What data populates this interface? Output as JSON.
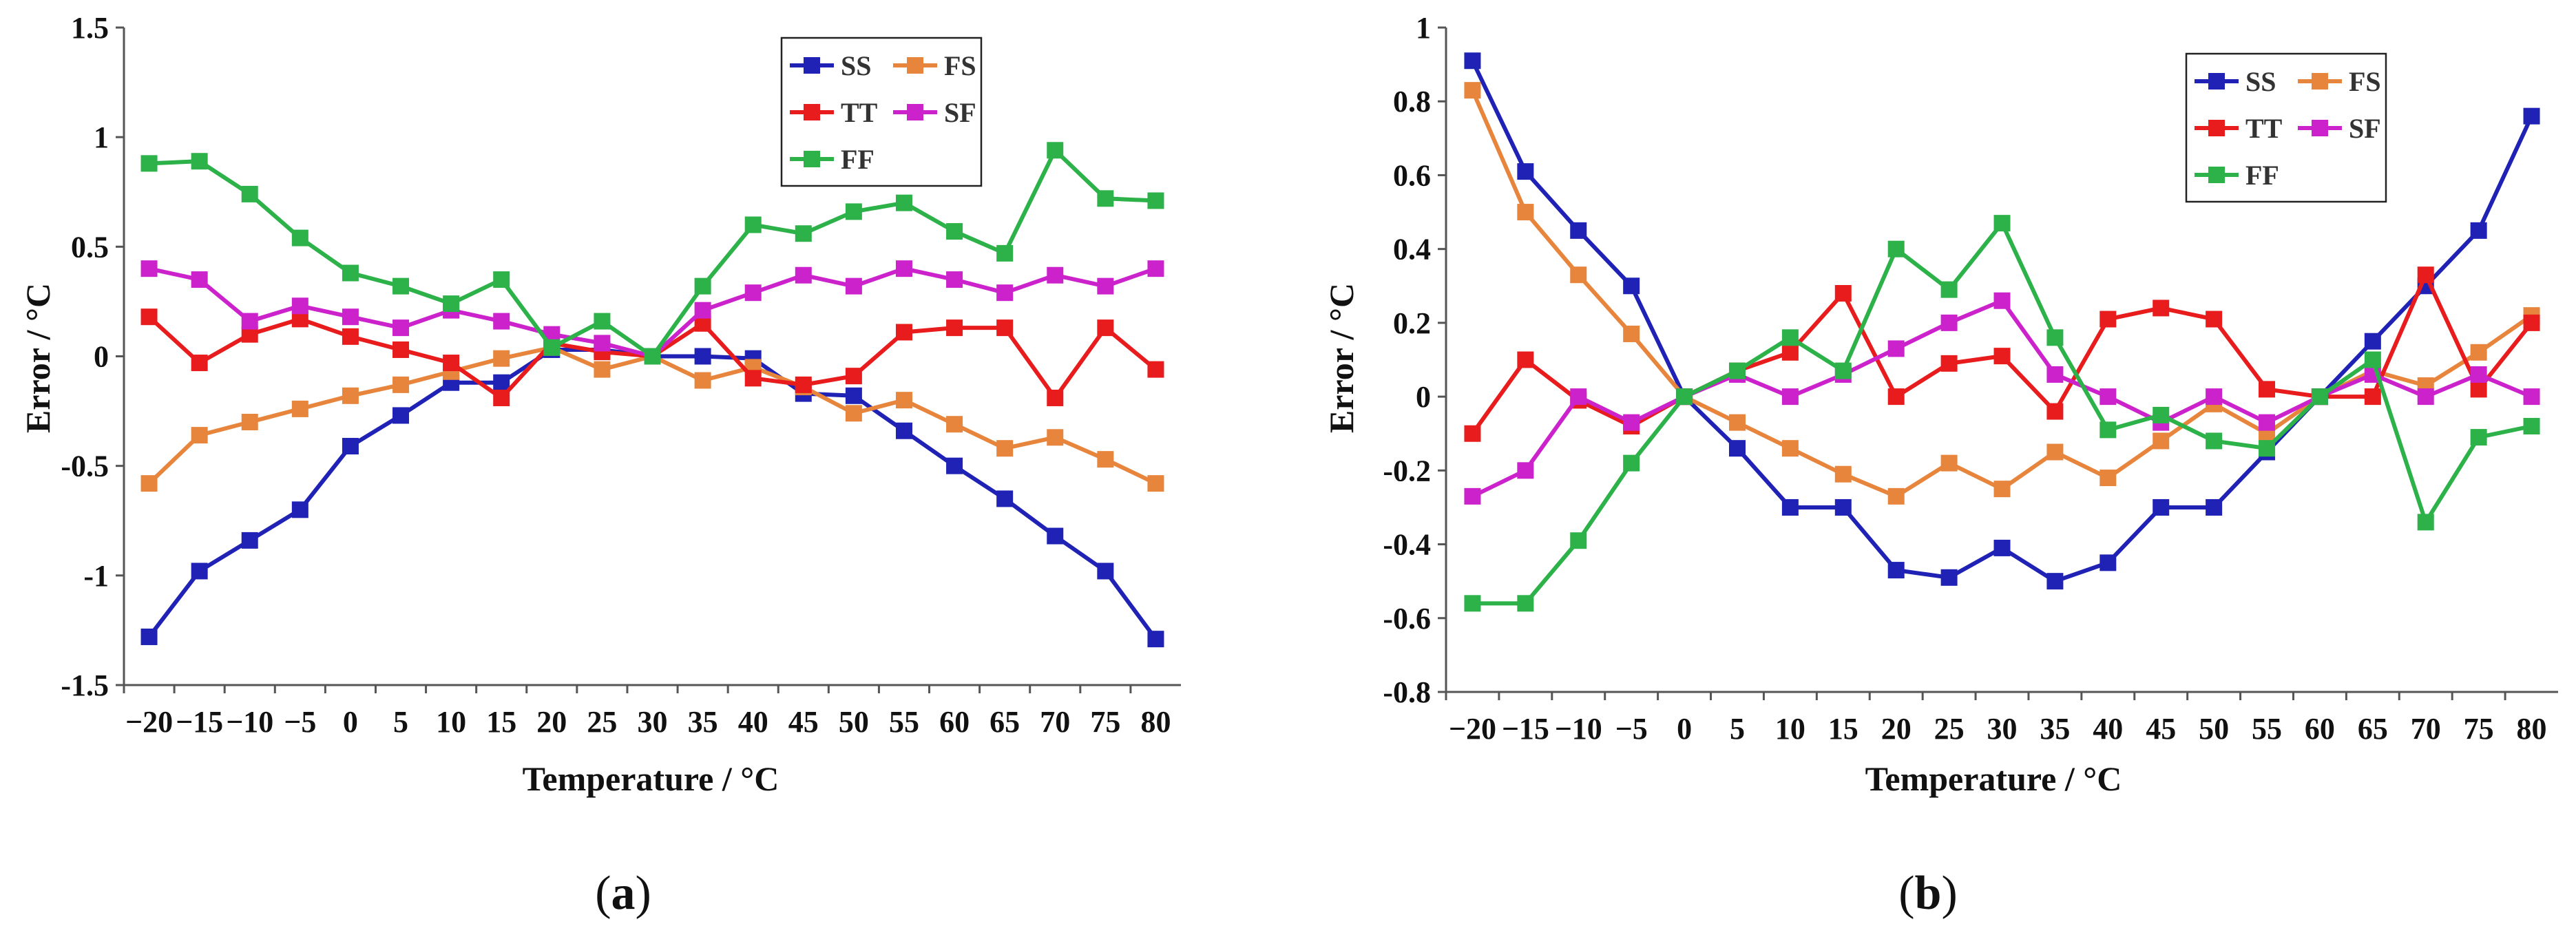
{
  "chart_data": [
    {
      "type": "line",
      "panel_label": "a",
      "xlabel": "Temperature / °C",
      "ylabel": "Error / °C",
      "categories": [
        "−20",
        "−15",
        "−10",
        "−5",
        "0",
        "5",
        "10",
        "15",
        "20",
        "25",
        "30",
        "35",
        "40",
        "45",
        "50",
        "55",
        "60",
        "65",
        "70",
        "75",
        "80"
      ],
      "y_ticks": [
        "-1.5",
        "-1",
        "-0.5",
        "0",
        "0.5",
        "1",
        "1.5"
      ],
      "ylim": [
        -1.5,
        1.5
      ],
      "legend_placement": "top-center",
      "grid": false,
      "series": [
        {
          "name": "SS",
          "color": "#1f22b4",
          "values": [
            -1.28,
            -0.98,
            -0.84,
            -0.7,
            -0.41,
            -0.27,
            -0.12,
            -0.12,
            0.03,
            0.03,
            0.0,
            0.0,
            -0.01,
            -0.17,
            -0.18,
            -0.34,
            -0.5,
            -0.65,
            -0.82,
            -0.98,
            -1.29
          ]
        },
        {
          "name": "FS",
          "color": "#e8853d",
          "values": [
            -0.58,
            -0.36,
            -0.3,
            -0.24,
            -0.18,
            -0.13,
            -0.07,
            -0.01,
            0.04,
            -0.06,
            0.0,
            -0.11,
            -0.05,
            -0.14,
            -0.26,
            -0.2,
            -0.31,
            -0.42,
            -0.37,
            -0.47,
            -0.58
          ]
        },
        {
          "name": "TT",
          "color": "#e81c1c",
          "values": [
            0.18,
            -0.03,
            0.1,
            0.17,
            0.09,
            0.03,
            -0.03,
            -0.19,
            0.06,
            0.02,
            0.0,
            0.15,
            -0.1,
            -0.13,
            -0.09,
            0.11,
            0.13,
            0.13,
            -0.19,
            0.13,
            -0.06
          ]
        },
        {
          "name": "SF",
          "color": "#cc22cc",
          "values": [
            0.4,
            0.35,
            0.16,
            0.23,
            0.18,
            0.13,
            0.21,
            0.16,
            0.1,
            0.06,
            0.0,
            0.21,
            0.29,
            0.37,
            0.32,
            0.4,
            0.35,
            0.29,
            0.37,
            0.32,
            0.4
          ]
        },
        {
          "name": "FF",
          "color": "#2db24a",
          "values": [
            0.88,
            0.89,
            0.74,
            0.54,
            0.38,
            0.32,
            0.24,
            0.35,
            0.04,
            0.16,
            0.0,
            0.32,
            0.6,
            0.56,
            0.66,
            0.7,
            0.57,
            0.47,
            0.94,
            0.72,
            0.71
          ]
        }
      ]
    },
    {
      "type": "line",
      "panel_label": "b",
      "xlabel": "Temperature / °C",
      "ylabel": "Error / °C",
      "categories": [
        "−20",
        "−15",
        "−10",
        "−5",
        "0",
        "5",
        "10",
        "15",
        "20",
        "25",
        "30",
        "35",
        "40",
        "45",
        "50",
        "55",
        "60",
        "65",
        "70",
        "75",
        "80"
      ],
      "y_ticks": [
        "-0.8",
        "-0.6",
        "-0.4",
        "-0.2",
        "0",
        "0.2",
        "0.4",
        "0.6",
        "0.8",
        "1"
      ],
      "ylim": [
        -0.8,
        1.0
      ],
      "legend_placement": "top-right",
      "grid": false,
      "series": [
        {
          "name": "SS",
          "color": "#1f22b4",
          "values": [
            0.91,
            0.61,
            0.45,
            0.3,
            0.0,
            -0.14,
            -0.3,
            -0.3,
            -0.47,
            -0.49,
            -0.41,
            -0.5,
            -0.45,
            -0.3,
            -0.3,
            -0.15,
            0.0,
            0.15,
            0.3,
            0.45,
            0.76
          ]
        },
        {
          "name": "FS",
          "color": "#e8853d",
          "values": [
            0.83,
            0.5,
            0.33,
            0.17,
            0.0,
            -0.07,
            -0.14,
            -0.21,
            -0.27,
            -0.18,
            -0.25,
            -0.15,
            -0.22,
            -0.12,
            -0.02,
            -0.1,
            0.0,
            0.07,
            0.03,
            0.12,
            0.22
          ]
        },
        {
          "name": "TT",
          "color": "#e81c1c",
          "values": [
            -0.1,
            0.1,
            -0.01,
            -0.08,
            0.0,
            0.07,
            0.12,
            0.28,
            0.0,
            0.09,
            0.11,
            -0.04,
            0.21,
            0.24,
            0.21,
            0.02,
            0.0,
            0.0,
            0.33,
            0.02,
            0.2
          ]
        },
        {
          "name": "SF",
          "color": "#cc22cc",
          "values": [
            -0.27,
            -0.2,
            0.0,
            -0.07,
            0.0,
            0.06,
            0.0,
            0.06,
            0.13,
            0.2,
            0.26,
            0.06,
            0.0,
            -0.07,
            0.0,
            -0.07,
            0.0,
            0.06,
            0.0,
            0.06,
            0.0
          ]
        },
        {
          "name": "FF",
          "color": "#2db24a",
          "values": [
            -0.56,
            -0.56,
            -0.39,
            -0.18,
            0.0,
            0.07,
            0.16,
            0.07,
            0.4,
            0.29,
            0.47,
            0.16,
            -0.09,
            -0.05,
            -0.12,
            -0.14,
            0.0,
            0.1,
            -0.34,
            -0.11,
            -0.08
          ]
        }
      ]
    }
  ]
}
